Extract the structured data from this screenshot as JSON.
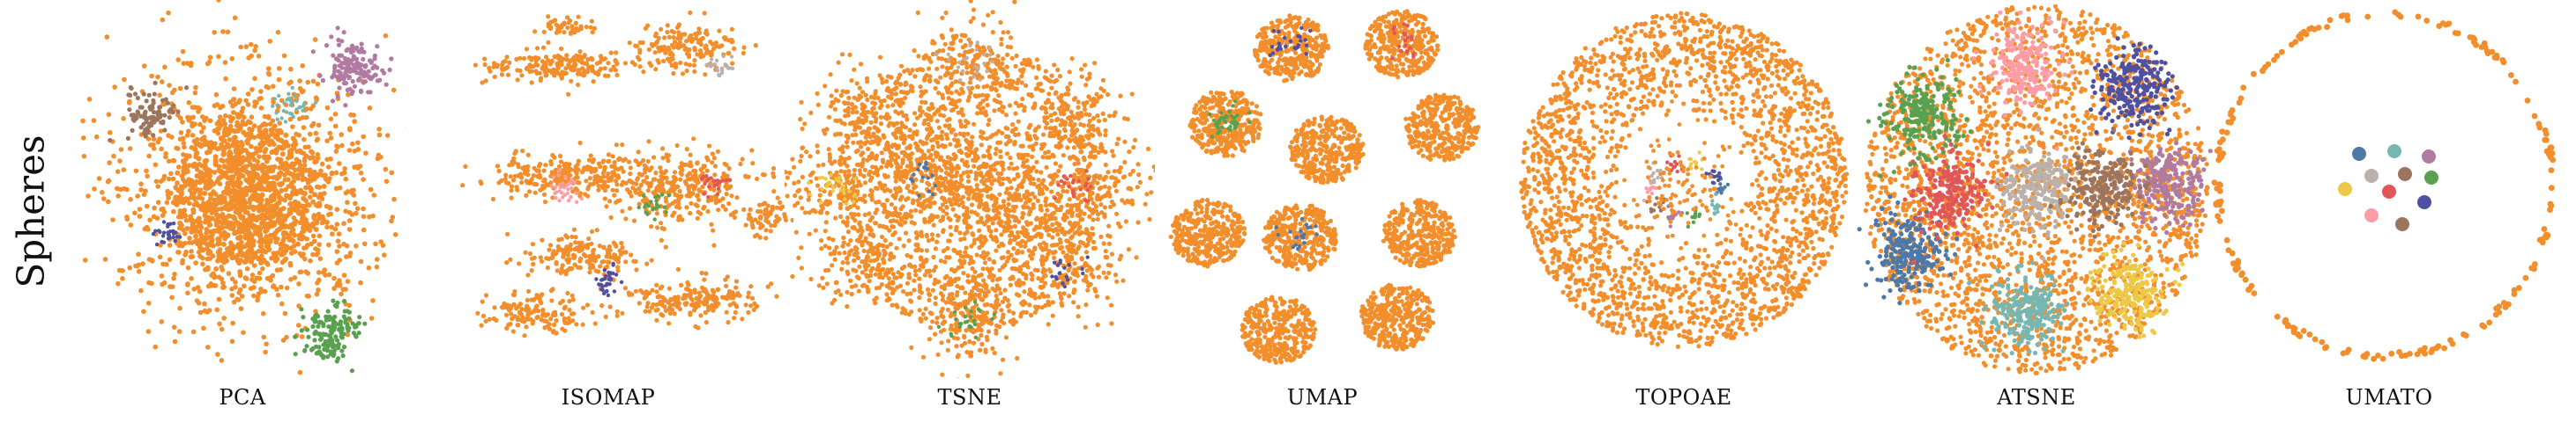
{
  "row_label": "Spheres",
  "colors": {
    "outer": "#f28e2b",
    "blue": "#4e79a7",
    "teal": "#76b7b2",
    "green": "#59a14f",
    "purple": "#b07aa1",
    "brown": "#9c755f",
    "pink": "#ff9da7",
    "grey": "#bab0ac",
    "red": "#e15759",
    "yellow": "#edc948",
    "indigo": "#5050a0"
  },
  "chart_data": [
    {
      "type": "scatter",
      "title": "PCA"
    },
    {
      "type": "scatter",
      "title": "ISOMAP"
    },
    {
      "type": "scatter",
      "title": "TSNE"
    },
    {
      "type": "scatter",
      "title": "UMAP"
    },
    {
      "type": "scatter",
      "title": "TOPOAE"
    },
    {
      "type": "scatter",
      "title": "ATSNE"
    },
    {
      "type": "scatter",
      "title": "UMATO"
    }
  ]
}
